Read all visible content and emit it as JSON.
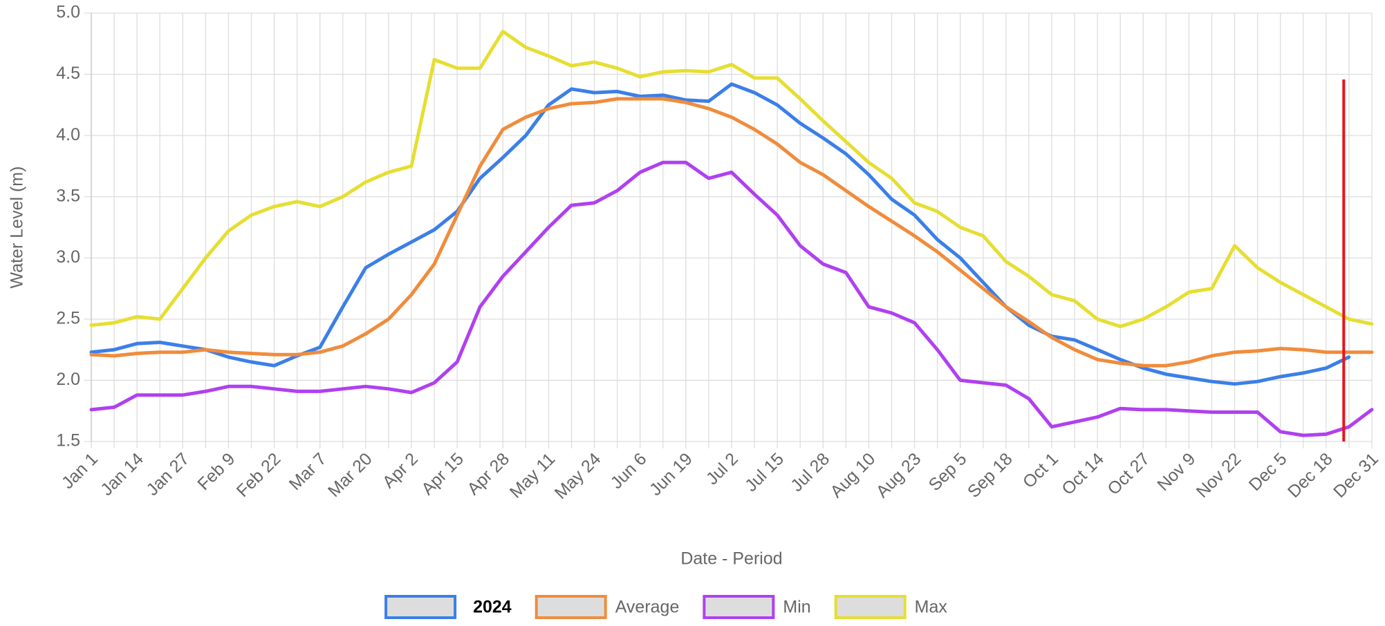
{
  "chart_data": {
    "type": "line",
    "y_label": "Water Level (m)",
    "x_label": "Date - Period",
    "categories": [
      "Jan 1",
      null,
      "Jan 14",
      null,
      "Jan 27",
      null,
      "Feb 9",
      null,
      "Feb 22",
      null,
      "Mar 7",
      null,
      "Mar 20",
      null,
      "Apr 2",
      null,
      "Apr 15",
      null,
      "Apr 28",
      null,
      "May 11",
      null,
      "May 24",
      null,
      "Jun 6",
      null,
      "Jun 19",
      null,
      "Jul 2",
      null,
      "Jul 15",
      null,
      "Jul 28",
      null,
      "Aug 10",
      null,
      "Aug 23",
      null,
      "Sep 5",
      null,
      "Sep 18",
      null,
      "Oct 1",
      null,
      "Oct 14",
      null,
      "Oct 27",
      null,
      "Nov 9",
      null,
      "Nov 22",
      null,
      "Dec 5",
      null,
      "Dec 18",
      null,
      "Dec 31"
    ],
    "series": [
      {
        "name": "2024",
        "color": "#3b7fe8",
        "values": [
          2.23,
          2.25,
          2.3,
          2.31,
          2.28,
          2.25,
          2.19,
          2.15,
          2.12,
          2.2,
          2.27,
          2.6,
          2.92,
          3.03,
          3.13,
          3.23,
          3.38,
          3.65,
          3.82,
          4.0,
          4.25,
          4.38,
          4.35,
          4.36,
          4.32,
          4.33,
          4.29,
          4.28,
          4.42,
          4.35,
          4.25,
          4.1,
          3.98,
          3.85,
          3.68,
          3.48,
          3.35,
          3.15,
          3.0,
          2.8,
          2.6,
          2.45,
          2.36,
          2.33,
          2.25,
          2.17,
          2.1,
          2.05,
          2.02,
          1.99,
          1.97,
          1.99,
          2.03,
          2.06,
          2.1,
          2.19,
          null
        ]
      },
      {
        "name": "Average",
        "color": "#f08c3c",
        "values": [
          2.21,
          2.2,
          2.22,
          2.23,
          2.23,
          2.25,
          2.23,
          2.22,
          2.21,
          2.21,
          2.23,
          2.28,
          2.38,
          2.5,
          2.7,
          2.95,
          3.35,
          3.75,
          4.05,
          4.15,
          4.22,
          4.26,
          4.27,
          4.3,
          4.3,
          4.3,
          4.27,
          4.22,
          4.15,
          4.05,
          3.93,
          3.78,
          3.68,
          3.55,
          3.42,
          3.3,
          3.18,
          3.05,
          2.9,
          2.75,
          2.6,
          2.48,
          2.35,
          2.25,
          2.17,
          2.14,
          2.12,
          2.12,
          2.15,
          2.2,
          2.23,
          2.24,
          2.26,
          2.25,
          2.23,
          2.23,
          2.23
        ]
      },
      {
        "name": "Min",
        "color": "#b040f0",
        "values": [
          1.76,
          1.78,
          1.88,
          1.88,
          1.88,
          1.91,
          1.95,
          1.95,
          1.93,
          1.91,
          1.91,
          1.93,
          1.95,
          1.93,
          1.9,
          1.98,
          2.15,
          2.6,
          2.85,
          3.05,
          3.25,
          3.43,
          3.45,
          3.55,
          3.7,
          3.78,
          3.78,
          3.65,
          3.7,
          3.52,
          3.35,
          3.1,
          2.95,
          2.88,
          2.6,
          2.55,
          2.47,
          2.25,
          2.0,
          1.98,
          1.96,
          1.85,
          1.62,
          1.66,
          1.7,
          1.77,
          1.76,
          1.76,
          1.75,
          1.74,
          1.74,
          1.74,
          1.58,
          1.55,
          1.56,
          1.62,
          1.76
        ]
      },
      {
        "name": "Max",
        "color": "#e6de32",
        "values": [
          2.45,
          2.47,
          2.52,
          2.5,
          2.75,
          3.0,
          3.22,
          3.35,
          3.42,
          3.46,
          3.42,
          3.5,
          3.62,
          3.7,
          3.75,
          4.62,
          4.55,
          4.55,
          4.85,
          4.72,
          4.65,
          4.57,
          4.6,
          4.55,
          4.48,
          4.52,
          4.53,
          4.52,
          4.58,
          4.47,
          4.47,
          4.3,
          4.12,
          3.95,
          3.78,
          3.65,
          3.45,
          3.38,
          3.25,
          3.18,
          2.97,
          2.85,
          2.7,
          2.65,
          2.5,
          2.44,
          2.5,
          2.6,
          2.72,
          2.75,
          3.1,
          2.92,
          2.8,
          2.7,
          2.6,
          2.5,
          2.46
        ]
      }
    ],
    "ylim": [
      1.5,
      5
    ],
    "yticks": [
      {
        "value": 5,
        "label": "5.0"
      },
      4.5,
      {
        "value": 4,
        "label": "4.0"
      },
      3.5,
      {
        "value": 3,
        "label": "3.0"
      },
      2.5,
      {
        "value": 2,
        "label": "2.0"
      },
      1.5
    ],
    "grid": true,
    "legend": "bottom",
    "marker": {
      "position": 54.77,
      "color": "#e8141c"
    }
  }
}
